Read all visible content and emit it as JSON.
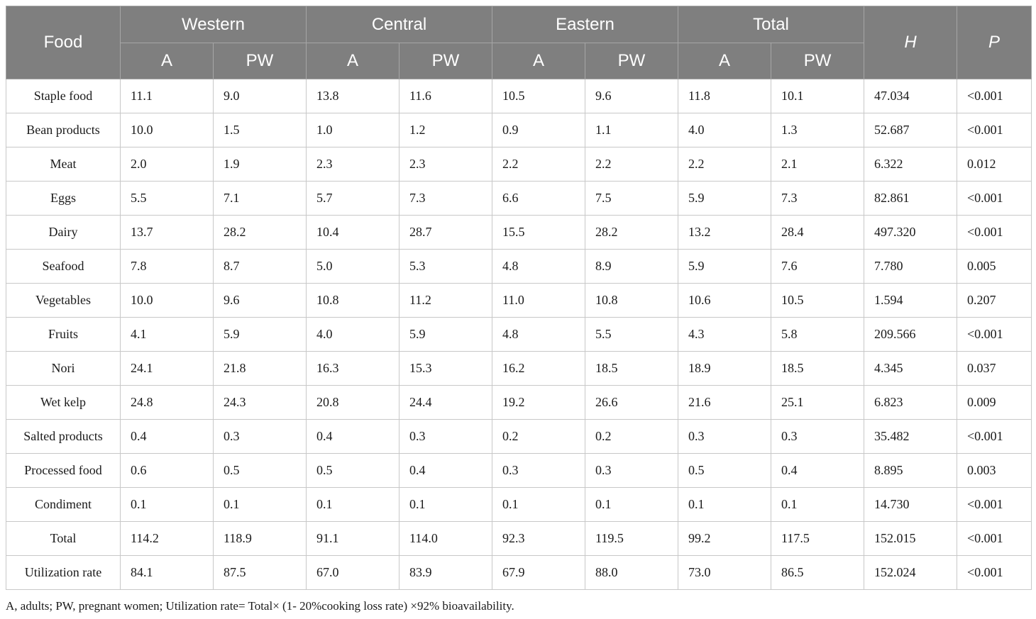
{
  "header": {
    "food": "Food",
    "regions": [
      "Western",
      "Central",
      "Eastern",
      "Total"
    ],
    "sub": [
      "A",
      "PW"
    ],
    "h": "H",
    "p": "P"
  },
  "rows": [
    {
      "food": "Staple food",
      "values": [
        "11.1",
        "9.0",
        "13.8",
        "11.6",
        "10.5",
        "9.6",
        "11.8",
        "10.1",
        "47.034",
        "<0.001"
      ]
    },
    {
      "food": "Bean products",
      "values": [
        "10.0",
        "1.5",
        "1.0",
        "1.2",
        "0.9",
        "1.1",
        "4.0",
        "1.3",
        "52.687",
        "<0.001"
      ]
    },
    {
      "food": "Meat",
      "values": [
        "2.0",
        "1.9",
        "2.3",
        "2.3",
        "2.2",
        "2.2",
        "2.2",
        "2.1",
        "6.322",
        "0.012"
      ]
    },
    {
      "food": "Eggs",
      "values": [
        "5.5",
        "7.1",
        "5.7",
        "7.3",
        "6.6",
        "7.5",
        "5.9",
        "7.3",
        "82.861",
        "<0.001"
      ]
    },
    {
      "food": "Dairy",
      "values": [
        "13.7",
        "28.2",
        "10.4",
        "28.7",
        "15.5",
        "28.2",
        "13.2",
        "28.4",
        "497.320",
        "<0.001"
      ]
    },
    {
      "food": "Seafood",
      "values": [
        "7.8",
        "8.7",
        "5.0",
        "5.3",
        "4.8",
        "8.9",
        "5.9",
        "7.6",
        "7.780",
        "0.005"
      ]
    },
    {
      "food": "Vegetables",
      "values": [
        "10.0",
        "9.6",
        "10.8",
        "11.2",
        "11.0",
        "10.8",
        "10.6",
        "10.5",
        "1.594",
        "0.207"
      ]
    },
    {
      "food": "Fruits",
      "values": [
        "4.1",
        "5.9",
        "4.0",
        "5.9",
        "4.8",
        "5.5",
        "4.3",
        "5.8",
        "209.566",
        "<0.001"
      ]
    },
    {
      "food": "Nori",
      "values": [
        "24.1",
        "21.8",
        "16.3",
        "15.3",
        "16.2",
        "18.5",
        "18.9",
        "18.5",
        "4.345",
        "0.037"
      ]
    },
    {
      "food": "Wet kelp",
      "values": [
        "24.8",
        "24.3",
        "20.8",
        "24.4",
        "19.2",
        "26.6",
        "21.6",
        "25.1",
        "6.823",
        "0.009"
      ]
    },
    {
      "food": "Salted products",
      "values": [
        "0.4",
        "0.3",
        "0.4",
        "0.3",
        "0.2",
        "0.2",
        "0.3",
        "0.3",
        "35.482",
        "<0.001"
      ]
    },
    {
      "food": "Processed food",
      "values": [
        "0.6",
        "0.5",
        "0.5",
        "0.4",
        "0.3",
        "0.3",
        "0.5",
        "0.4",
        "8.895",
        "0.003"
      ]
    },
    {
      "food": "Condiment",
      "values": [
        "0.1",
        "0.1",
        "0.1",
        "0.1",
        "0.1",
        "0.1",
        "0.1",
        "0.1",
        "14.730",
        "<0.001"
      ]
    },
    {
      "food": "Total",
      "values": [
        "114.2",
        "118.9",
        "91.1",
        "114.0",
        "92.3",
        "119.5",
        "99.2",
        "117.5",
        "152.015",
        "<0.001"
      ]
    },
    {
      "food": "Utilization rate",
      "values": [
        "84.1",
        "87.5",
        "67.0",
        "83.9",
        "67.9",
        "88.0",
        "73.0",
        "86.5",
        "152.024",
        "<0.001"
      ]
    }
  ],
  "footnote": "A, adults; PW, pregnant women; Utilization rate= Total× (1- 20%cooking loss rate) ×92% bioavailability.",
  "colors": {
    "header_bg": "#7f7f7f",
    "header_text": "#ffffff",
    "border": "#c8c8c8"
  }
}
